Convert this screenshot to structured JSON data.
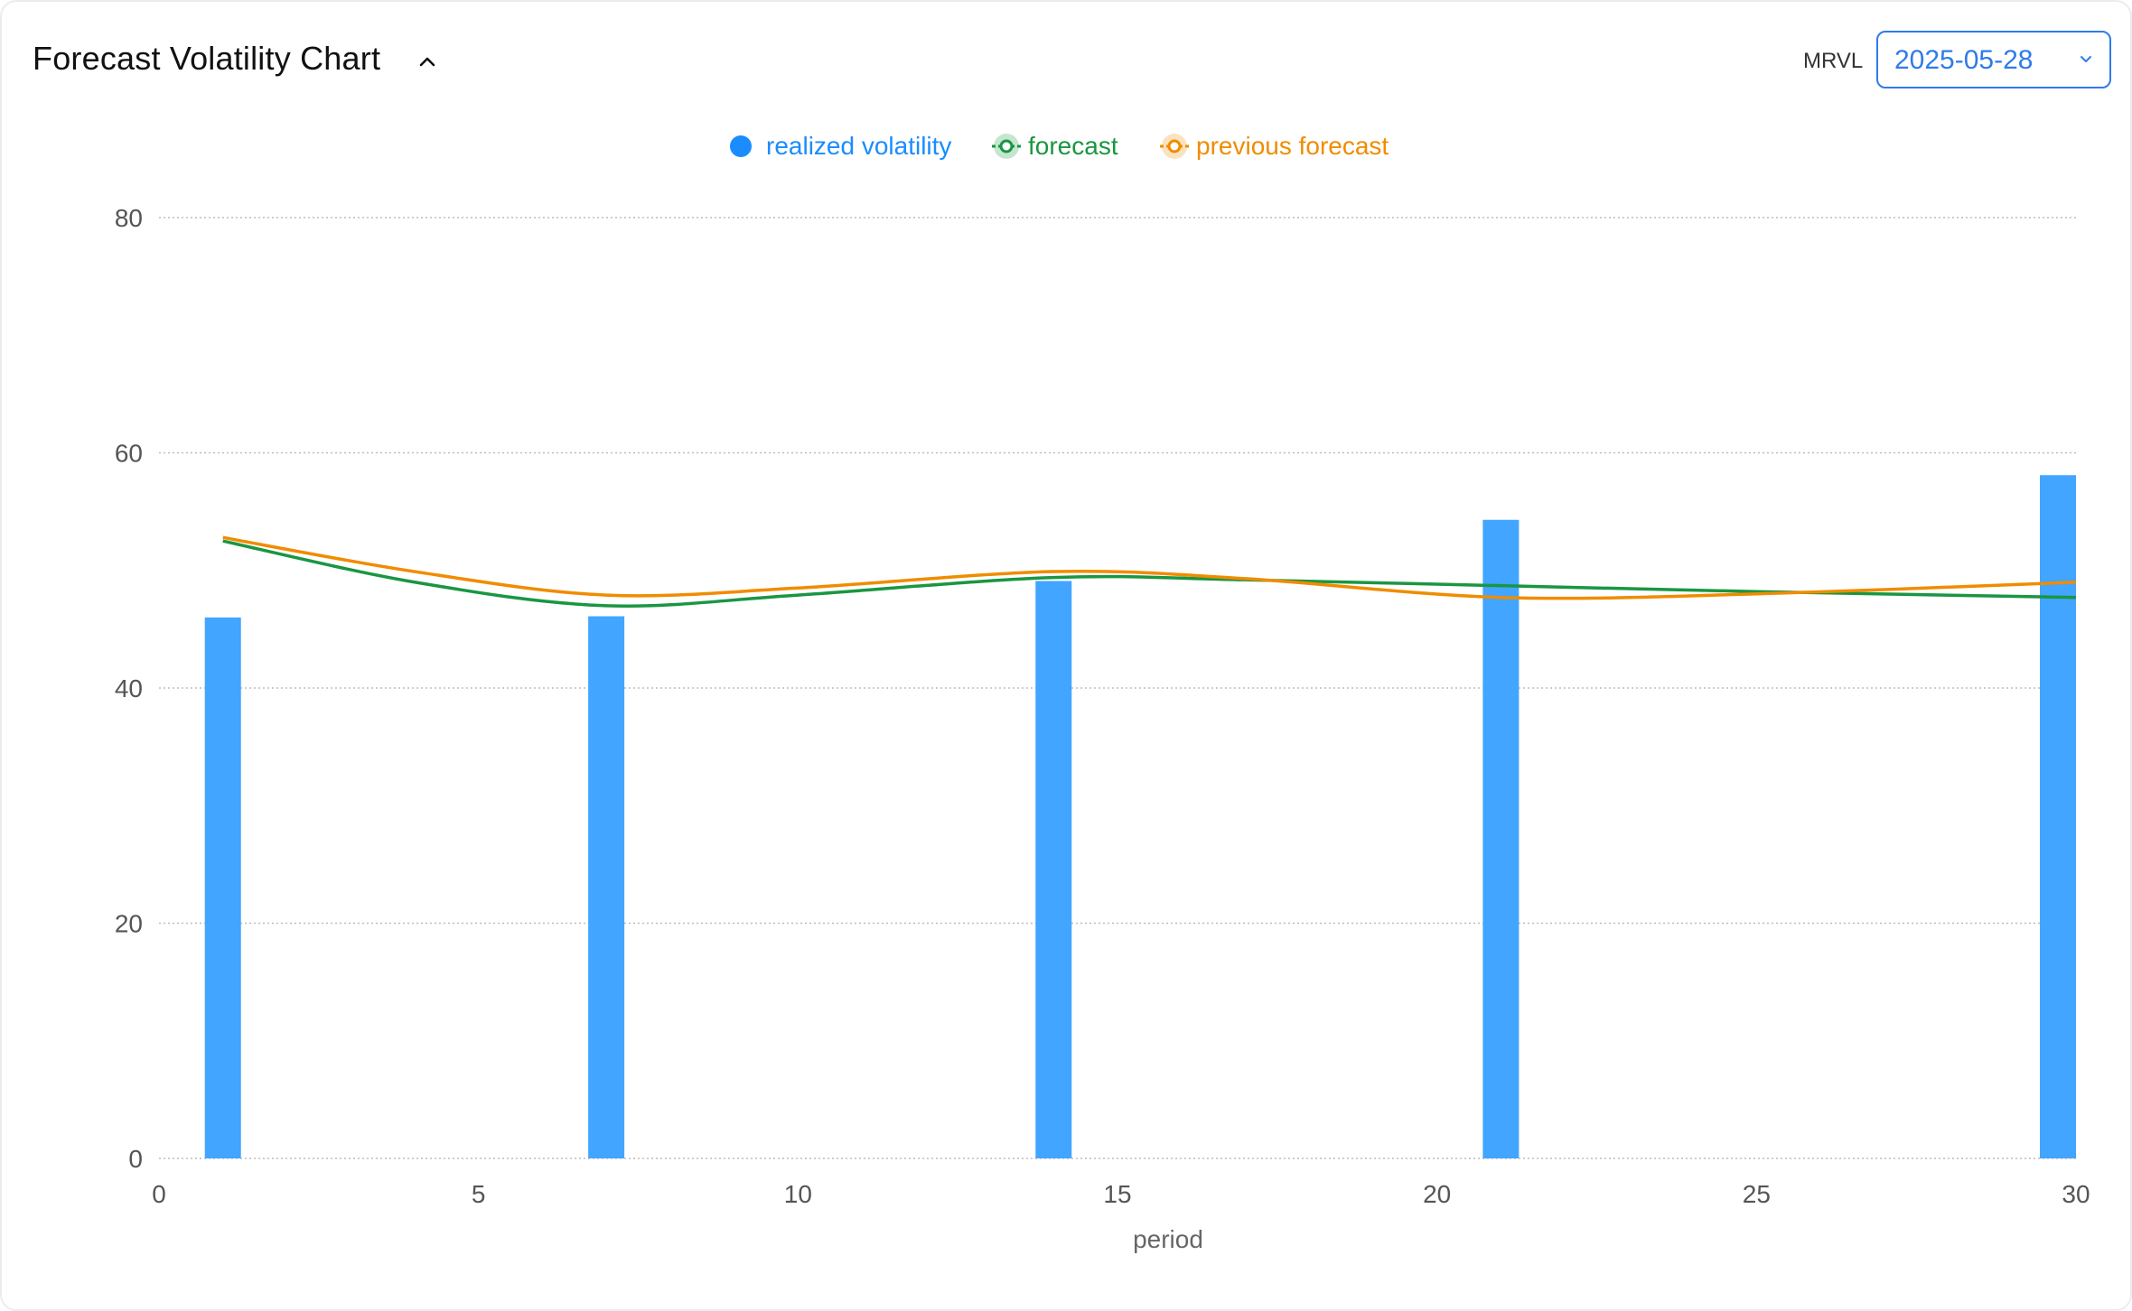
{
  "header": {
    "title": "Forecast Volatility Chart",
    "ticker": "MRVL",
    "selected_date": "2025-05-28"
  },
  "legend": {
    "items": [
      {
        "label": "realized volatility",
        "color": "#1a8cff",
        "icon": "filled-circle-icon"
      },
      {
        "label": "forecast",
        "color": "#1a9641",
        "icon": "line-dot-icon"
      },
      {
        "label": "previous forecast",
        "color": "#f08c00",
        "icon": "line-dot-icon"
      }
    ]
  },
  "chart_data": {
    "type": "bar",
    "title": "",
    "xlabel": "period",
    "ylabel": "",
    "xlim": [
      0,
      30
    ],
    "ylim": [
      0,
      80
    ],
    "x_ticks": [
      0,
      5,
      10,
      15,
      20,
      25,
      30
    ],
    "y_ticks": [
      0,
      20,
      40,
      60,
      80
    ],
    "grid": "horizontal dotted",
    "legend_position": "top-center",
    "series": [
      {
        "name": "realized volatility",
        "type": "bar",
        "color": "#42a5ff",
        "x": [
          1,
          7,
          14,
          21,
          30
        ],
        "values": [
          46.0,
          46.1,
          49.1,
          54.3,
          58.1
        ]
      },
      {
        "name": "forecast",
        "type": "line",
        "color": "#1a9641",
        "x": [
          1,
          4,
          7,
          10,
          14,
          17,
          21,
          25,
          30
        ],
        "values": [
          52.5,
          49.0,
          47.0,
          47.9,
          49.4,
          49.2,
          48.7,
          48.2,
          47.7
        ]
      },
      {
        "name": "previous forecast",
        "type": "line",
        "color": "#f08c00",
        "x": [
          1,
          4,
          7,
          10,
          14,
          17,
          21,
          25,
          30
        ],
        "values": [
          52.8,
          49.9,
          47.9,
          48.5,
          49.9,
          49.3,
          47.7,
          48.0,
          49.0
        ]
      }
    ]
  }
}
